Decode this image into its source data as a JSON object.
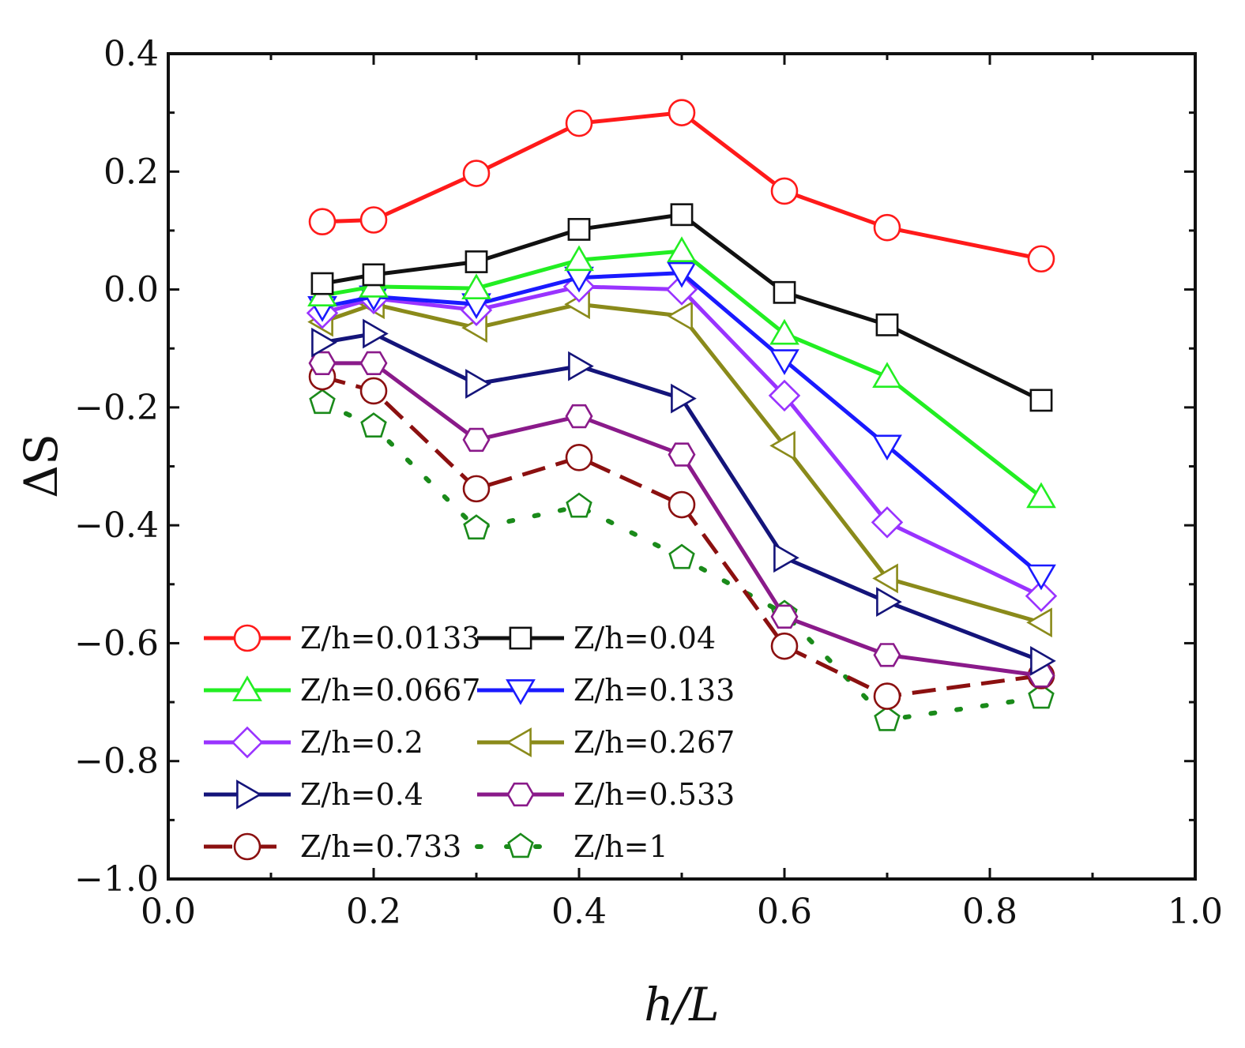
{
  "chart_data": {
    "type": "line",
    "xlabel": "h/L",
    "ylabel": "ΔS",
    "xlim": [
      0.0,
      1.0
    ],
    "ylim": [
      -1.0,
      0.4
    ],
    "x_ticks": [
      0.0,
      0.2,
      0.4,
      0.6,
      0.8,
      1.0
    ],
    "x_tick_labels": [
      "0.0",
      "0.2",
      "0.4",
      "0.6",
      "0.8",
      "1.0"
    ],
    "y_ticks": [
      0.4,
      0.2,
      0.0,
      -0.2,
      -0.4,
      -0.6,
      -0.8,
      -1.0
    ],
    "y_tick_labels": [
      "0.4",
      "0.2",
      "0.0",
      "−0.2",
      "−0.4",
      "−0.6",
      "−0.8",
      "−1.0"
    ],
    "x": [
      0.15,
      0.2,
      0.3,
      0.4,
      0.5,
      0.6,
      0.7,
      0.85
    ],
    "legend_position": "bottom-left",
    "series": [
      {
        "name": "Z/h=0.0133",
        "color": "#ff1a1a",
        "marker": "circle",
        "dash": "solid",
        "values": [
          0.115,
          0.118,
          0.197,
          0.282,
          0.3,
          0.167,
          0.105,
          0.052
        ]
      },
      {
        "name": "Z/h=0.04",
        "color": "#111111",
        "marker": "square",
        "dash": "solid",
        "values": [
          0.01,
          0.025,
          0.047,
          0.102,
          0.127,
          -0.005,
          -0.06,
          -0.188
        ]
      },
      {
        "name": "Z/h=0.0667",
        "color": "#22ee22",
        "marker": "triangle-up",
        "dash": "solid",
        "values": [
          -0.01,
          0.005,
          0.002,
          0.05,
          0.065,
          -0.075,
          -0.148,
          -0.352
        ]
      },
      {
        "name": "Z/h=0.133",
        "color": "#1a1aff",
        "marker": "triangle-down",
        "dash": "solid",
        "values": [
          -0.03,
          -0.012,
          -0.025,
          0.02,
          0.028,
          -0.12,
          -0.265,
          -0.485
        ]
      },
      {
        "name": "Z/h=0.2",
        "color": "#9933ff",
        "marker": "diamond",
        "dash": "solid",
        "values": [
          -0.04,
          -0.015,
          -0.035,
          0.005,
          0.0,
          -0.18,
          -0.395,
          -0.52
        ]
      },
      {
        "name": "Z/h=0.267",
        "color": "#8a8a1a",
        "marker": "triangle-left",
        "dash": "solid",
        "values": [
          -0.055,
          -0.025,
          -0.065,
          -0.025,
          -0.045,
          -0.265,
          -0.49,
          -0.565
        ]
      },
      {
        "name": "Z/h=0.4",
        "color": "#14147a",
        "marker": "triangle-right",
        "dash": "solid",
        "values": [
          -0.09,
          -0.075,
          -0.16,
          -0.13,
          -0.185,
          -0.455,
          -0.53,
          -0.63
        ]
      },
      {
        "name": "Z/h=0.533",
        "color": "#8a1a8a",
        "marker": "hexagon",
        "dash": "solid",
        "values": [
          -0.125,
          -0.125,
          -0.255,
          -0.215,
          -0.28,
          -0.555,
          -0.62,
          -0.655
        ]
      },
      {
        "name": "Z/h=0.733",
        "color": "#8b1010",
        "marker": "circle",
        "dash": "dashed",
        "values": [
          -0.148,
          -0.172,
          -0.338,
          -0.285,
          -0.365,
          -0.605,
          -0.69,
          -0.655
        ]
      },
      {
        "name": "Z/h=1",
        "color": "#1a8a1a",
        "marker": "pentagon",
        "dash": "dotted",
        "values": [
          -0.192,
          -0.232,
          -0.405,
          -0.368,
          -0.455,
          -0.55,
          -0.73,
          -0.692
        ]
      }
    ],
    "legend_layout": [
      [
        "Z/h=0.0133",
        "Z/h=0.04"
      ],
      [
        "Z/h=0.0667",
        "Z/h=0.133"
      ],
      [
        "Z/h=0.2",
        "Z/h=0.267"
      ],
      [
        "Z/h=0.4",
        "Z/h=0.533"
      ],
      [
        "Z/h=0.733",
        "Z/h=1"
      ]
    ]
  }
}
